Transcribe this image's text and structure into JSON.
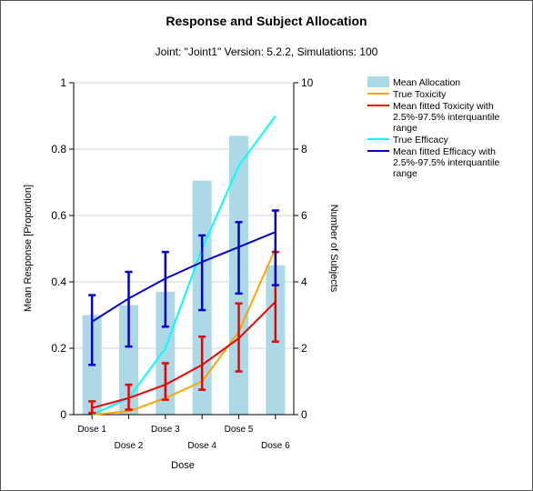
{
  "chart_data": {
    "type": "bar",
    "title": "Response and Subject Allocation",
    "subtitle": "Joint: \"Joint1\" Version: 5.2.2, Simulations: 100",
    "xlabel": "Dose",
    "ylabel": "Mean Response [Proportion]",
    "y2label": "Number of Subjects",
    "categories": [
      "Dose 1",
      "Dose 2",
      "Dose 3",
      "Dose 4",
      "Dose 5",
      "Dose 6"
    ],
    "ylim": [
      0,
      1
    ],
    "yticks": [
      "0",
      "0.2",
      "0.4",
      "0.6",
      "0.8",
      "1"
    ],
    "y2lim": [
      0,
      10
    ],
    "y2ticks": [
      "0",
      "2",
      "4",
      "6",
      "8",
      "10"
    ],
    "grid": true,
    "legend_position": "right",
    "bars": {
      "name": "Mean Allocation",
      "axis": "right",
      "color": "#add8e6",
      "values": [
        3.0,
        3.3,
        3.7,
        7.05,
        8.4,
        4.5
      ]
    },
    "series": [
      {
        "name": "True Toxicity",
        "color": "#ffa500",
        "values": [
          0.0,
          0.01,
          0.05,
          0.1,
          0.25,
          0.5
        ]
      },
      {
        "name": "Mean fitted Toxicity with 2.5%-97.5% interquantile range",
        "color": "#ee0000",
        "values": [
          0.02,
          0.05,
          0.09,
          0.15,
          0.23,
          0.34
        ],
        "lower": [
          0.005,
          0.015,
          0.045,
          0.075,
          0.13,
          0.22
        ],
        "upper": [
          0.04,
          0.09,
          0.155,
          0.235,
          0.335,
          0.49
        ]
      },
      {
        "name": "True Efficacy",
        "color": "#00ffff",
        "values": [
          0.0,
          0.05,
          0.2,
          0.5,
          0.75,
          0.9
        ]
      },
      {
        "name": "Mean fitted Efficacy with 2.5%-97.5% interquantile range",
        "color": "#0000cc",
        "values": [
          0.28,
          0.35,
          0.41,
          0.46,
          0.505,
          0.55
        ],
        "lower": [
          0.15,
          0.205,
          0.265,
          0.315,
          0.365,
          0.39
        ],
        "upper": [
          0.36,
          0.43,
          0.49,
          0.54,
          0.58,
          0.615
        ]
      }
    ],
    "legend": [
      [
        "Mean Allocation"
      ],
      [
        "True Toxicity"
      ],
      [
        "Mean fitted Toxicity with",
        "2.5%-97.5% interquantile",
        "range"
      ],
      [
        "True Efficacy"
      ],
      [
        "Mean fitted Efficacy with",
        "2.5%-97.5% interquantile",
        "range"
      ]
    ]
  }
}
